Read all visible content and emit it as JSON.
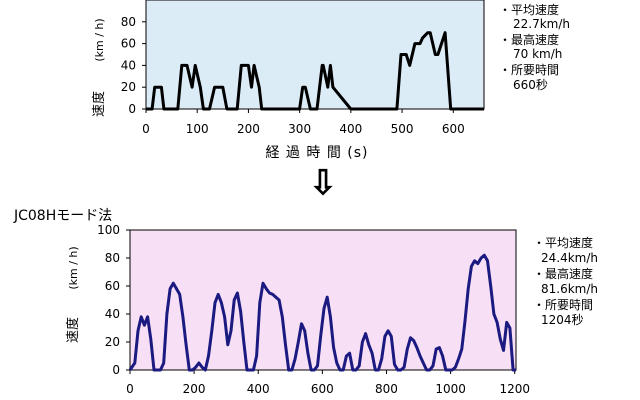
{
  "top": {
    "xlabel": "経 過 時 間 (s)",
    "ylabel_jp": "速度",
    "ylabel_unit": "(km / h)",
    "stats": [
      {
        "label": "・平均速度",
        "value": "22.7km/h"
      },
      {
        "label": "・最高速度",
        "value": "70 km/h"
      },
      {
        "label": "・所要時間",
        "value": "660秒"
      }
    ]
  },
  "arrow": "⇩",
  "bottom": {
    "title": "JC08Hモード法",
    "ylabel_jp": "速度",
    "ylabel_unit": "(km / h)",
    "stats": [
      {
        "label": "・平均速度",
        "value": "24.4km/h"
      },
      {
        "label": "・最高速度",
        "value": "81.6km/h"
      },
      {
        "label": "・所要時間",
        "value": "1204秒"
      }
    ]
  },
  "colors": {
    "top_bg": "#dcecf7",
    "bottom_bg": "#f7dff5",
    "top_line": "#000000",
    "bottom_line": "#1a1a80"
  },
  "chart_data": [
    {
      "type": "line",
      "title": "",
      "xlabel": "経 過 時 間 (s)",
      "ylabel": "速度 (km / h)",
      "xlim": [
        0,
        660
      ],
      "ylim": [
        0,
        100
      ],
      "x_ticks": [
        0,
        100,
        200,
        300,
        400,
        500,
        600
      ],
      "y_ticks": [
        0,
        20,
        40,
        60,
        80
      ],
      "series": [
        {
          "x": [
            0,
            12,
            17,
            30,
            35,
            45,
            57,
            62,
            70,
            80,
            90,
            96,
            106,
            112,
            120,
            124,
            134,
            150,
            158,
            163,
            173,
            178,
            186,
            200,
            206,
            211,
            221,
            226,
            234,
            244,
            246,
            255,
            260,
            265,
            300,
            306,
            311,
            321,
            326,
            334,
            344,
            346,
            355,
            360,
            365,
            400,
            412,
            418,
            472,
            478,
            484,
            490,
            498,
            508,
            515,
            520,
            525,
            535,
            540,
            550,
            555,
            565,
            570,
            577,
            584,
            595,
            600,
            610,
            615,
            630,
            660
          ],
          "y": [
            0,
            0,
            20,
            20,
            0,
            0,
            0,
            0,
            40,
            40,
            20,
            40,
            20,
            0,
            0,
            0,
            20,
            20,
            0,
            0,
            0,
            0,
            40,
            40,
            20,
            40,
            20,
            0,
            0,
            0,
            0,
            0,
            0,
            0,
            0,
            20,
            20,
            0,
            0,
            0,
            40,
            40,
            20,
            40,
            20,
            0,
            0,
            0,
            0,
            0,
            0,
            0,
            50,
            50,
            40,
            50,
            60,
            60,
            65,
            70,
            70,
            50,
            50,
            60,
            70,
            0,
            0,
            0,
            0,
            0,
            0
          ]
        }
      ]
    },
    {
      "type": "line",
      "title": "JC08Hモード法",
      "xlabel": "",
      "ylabel": "速度 (km / h)",
      "xlim": [
        0,
        1204
      ],
      "ylim": [
        0,
        100
      ],
      "x_ticks": [
        0,
        200,
        400,
        600,
        800,
        1000,
        1200
      ],
      "y_ticks": [
        0,
        20,
        40,
        60,
        80,
        100
      ],
      "series": [
        {
          "x": [
            0,
            15,
            25,
            35,
            45,
            55,
            65,
            75,
            85,
            95,
            105,
            115,
            125,
            135,
            145,
            155,
            165,
            175,
            185,
            195,
            205,
            215,
            225,
            235,
            245,
            255,
            265,
            275,
            285,
            295,
            305,
            315,
            325,
            335,
            345,
            355,
            365,
            375,
            385,
            395,
            405,
            415,
            425,
            435,
            445,
            455,
            465,
            475,
            485,
            495,
            505,
            515,
            525,
            535,
            545,
            555,
            565,
            575,
            585,
            595,
            605,
            615,
            625,
            635,
            645,
            655,
            665,
            675,
            685,
            695,
            705,
            715,
            725,
            735,
            745,
            755,
            765,
            775,
            785,
            795,
            805,
            815,
            825,
            835,
            845,
            855,
            865,
            875,
            885,
            895,
            905,
            915,
            925,
            935,
            945,
            955,
            965,
            975,
            985,
            995,
            1005,
            1015,
            1025,
            1035,
            1045,
            1055,
            1065,
            1075,
            1085,
            1095,
            1105,
            1115,
            1125,
            1135,
            1145,
            1155,
            1165,
            1175,
            1185,
            1195,
            1204
          ],
          "y": [
            0,
            5,
            28,
            38,
            32,
            38,
            22,
            0,
            0,
            0,
            5,
            40,
            58,
            62,
            58,
            54,
            38,
            18,
            0,
            0,
            2,
            5,
            2,
            0,
            10,
            28,
            48,
            54,
            48,
            38,
            18,
            28,
            50,
            55,
            42,
            20,
            0,
            0,
            0,
            10,
            48,
            62,
            58,
            55,
            54,
            52,
            50,
            38,
            18,
            0,
            0,
            8,
            20,
            33,
            28,
            12,
            0,
            0,
            3,
            25,
            44,
            52,
            38,
            16,
            5,
            0,
            0,
            10,
            12,
            0,
            0,
            3,
            20,
            26,
            18,
            12,
            0,
            0,
            8,
            24,
            28,
            24,
            4,
            0,
            0,
            2,
            15,
            23,
            21,
            16,
            10,
            5,
            0,
            0,
            3,
            15,
            16,
            10,
            0,
            0,
            0,
            2,
            8,
            15,
            35,
            58,
            74,
            78,
            76,
            80,
            82,
            78,
            60,
            40,
            34,
            22,
            14,
            34,
            30,
            0,
            0
          ]
        }
      ]
    }
  ]
}
